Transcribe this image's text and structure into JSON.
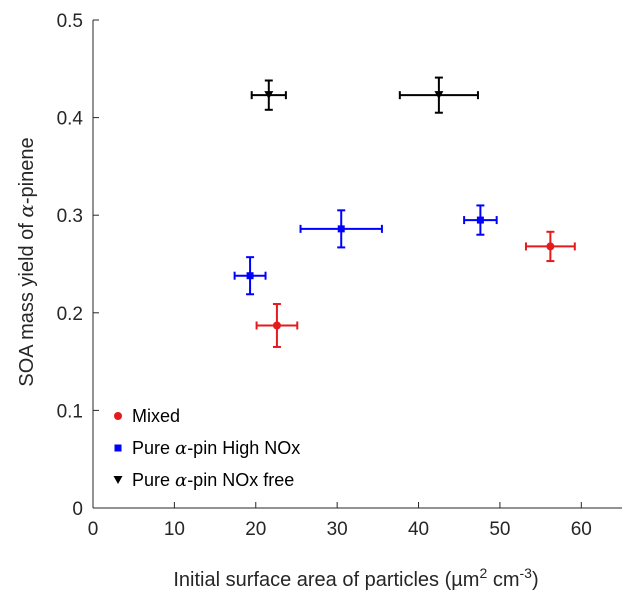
{
  "chart_data": {
    "type": "scatter",
    "xlabel": {
      "prefix": "Initial surface area of particles (µm",
      "sup1": "2",
      "mid": " cm",
      "sup2": "-3",
      "suffix": ")"
    },
    "ylabel": {
      "prefix": "SOA mass yield of ",
      "greek": "α",
      "suffix": "-pinene"
    },
    "xlim": [
      0,
      65
    ],
    "ylim": [
      0,
      0.5
    ],
    "xticks": [
      0,
      10,
      20,
      30,
      40,
      50,
      60
    ],
    "yticks": [
      0,
      0.1,
      0.2,
      0.3,
      0.4,
      0.5
    ],
    "xtick_labels": [
      "0",
      "10",
      "20",
      "30",
      "40",
      "50",
      "60"
    ],
    "ytick_labels": [
      "0",
      "0.1",
      "0.2",
      "0.3",
      "0.4",
      "0.5"
    ],
    "grid": false,
    "legend_position": "bottom-left",
    "series": [
      {
        "name": "Mixed",
        "legend": {
          "prefix": "Mixed",
          "greek": "",
          "suffix": ""
        },
        "color": "#e41a1c",
        "marker": "circle",
        "points": [
          {
            "x": 22.6,
            "y": 0.187,
            "xerr": 2.5,
            "yerr": 0.022
          },
          {
            "x": 56.2,
            "y": 0.268,
            "xerr": 3.0,
            "yerr": 0.015
          }
        ]
      },
      {
        "name": "Pure α-pin High NOx",
        "legend": {
          "prefix": "Pure ",
          "greek": "α",
          "suffix": "-pin High NOx"
        },
        "color": "#0000ff",
        "marker": "square",
        "points": [
          {
            "x": 19.3,
            "y": 0.238,
            "xerr": 1.9,
            "yerr": 0.019
          },
          {
            "x": 30.5,
            "y": 0.286,
            "xerr": 5.0,
            "yerr": 0.019
          },
          {
            "x": 47.6,
            "y": 0.295,
            "xerr": 2.0,
            "yerr": 0.015
          }
        ]
      },
      {
        "name": "Pure α-pin NOx free",
        "legend": {
          "prefix": "Pure ",
          "greek": "α",
          "suffix": "-pin NOx free"
        },
        "color": "#000000",
        "marker": "triangle-down",
        "points": [
          {
            "x": 21.6,
            "y": 0.423,
            "xerr": 2.1,
            "yerr": 0.015
          },
          {
            "x": 42.5,
            "y": 0.423,
            "xerr": 4.8,
            "yerr": 0.018
          }
        ]
      }
    ]
  }
}
